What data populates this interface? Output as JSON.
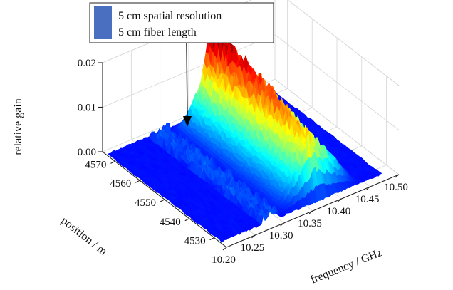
{
  "chart_data": {
    "type": "surface",
    "title": "",
    "xlabel": "frequency / GHz",
    "ylabel": "position / m",
    "zlabel": "relative gain",
    "x_ticks": [
      "10.20",
      "10.25",
      "10.30",
      "10.35",
      "10.40",
      "10.45",
      "10.50"
    ],
    "y_ticks": [
      "4530",
      "4540",
      "4550",
      "4560",
      "4570"
    ],
    "z_ticks": [
      "0.00",
      "0.01",
      "0.02"
    ],
    "xlim": [
      10.2,
      10.5
    ],
    "ylim": [
      4525,
      4575
    ],
    "zlim": [
      0,
      0.02
    ],
    "colormap": "jet",
    "legend": {
      "placement": "top-left",
      "color": "#4a6fc1",
      "entries": [
        "5 cm spatial resolution",
        "5 cm fiber length"
      ]
    },
    "annotation": {
      "type": "arrow",
      "points_to": "small gain peak near 4568 m",
      "from": "legend"
    },
    "features": [
      {
        "name": "main gain band",
        "frequency_range_GHz": [
          10.3,
          10.44
        ],
        "position_range_m": [
          4527,
          4573
        ],
        "peak_frequency_GHz": 10.37,
        "peak_relative_gain": 0.021
      },
      {
        "name": "short fiber section peak",
        "frequency_GHz": 10.37,
        "position_m": 4568,
        "peak_relative_gain": 0.011
      }
    ]
  }
}
